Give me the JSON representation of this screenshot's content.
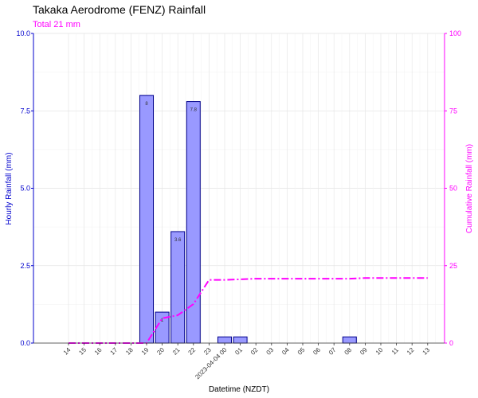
{
  "chart_data": {
    "type": "bar",
    "title": "Takaka Aerodrome (FENZ) Rainfall",
    "subtitle": "Total 21 mm",
    "xlabel": "Datetime (NZDT)",
    "ylabel": "Hourly Rainfall (mm)",
    "y2label": "Cumulative Rainfall (mm)",
    "ylim": [
      0,
      10
    ],
    "y2lim": [
      0,
      100
    ],
    "yticks": [
      "0.0",
      "2.5",
      "5.0",
      "7.5",
      "10.0"
    ],
    "y2ticks": [
      "0",
      "25",
      "50",
      "75",
      "100"
    ],
    "categories": [
      "14",
      "15",
      "16",
      "17",
      "18",
      "19",
      "20",
      "21",
      "22",
      "23",
      "2023-04-04 00",
      "01",
      "02",
      "03",
      "04",
      "05",
      "06",
      "07",
      "08",
      "09",
      "10",
      "11",
      "12",
      "13"
    ],
    "series": [
      {
        "type": "bar",
        "values": [
          0,
          0,
          0,
          0,
          0,
          8.0,
          1.0,
          3.6,
          7.8,
          0,
          0.2,
          0.2,
          0,
          0,
          0,
          0,
          0,
          0,
          0.2,
          0,
          0,
          0,
          0,
          0
        ],
        "labels": [
          "",
          "",
          "",
          "",
          "",
          "8",
          "1",
          "3.6",
          "7.8",
          "",
          "",
          "",
          "",
          "",
          "",
          "",
          "",
          "",
          "",
          "",
          "",
          "",
          "",
          ""
        ]
      },
      {
        "type": "line",
        "axis": "secondary",
        "values": [
          0,
          0,
          0,
          0,
          0,
          0,
          8.0,
          9.0,
          12.6,
          20.4,
          20.4,
          20.6,
          20.8,
          20.8,
          20.8,
          20.8,
          20.8,
          20.8,
          20.8,
          21.0,
          21.0,
          21.0,
          21.0,
          21.0
        ]
      }
    ],
    "grid": true,
    "colors": {
      "bar_fill": "#9999ff",
      "bar_stroke": "#00008b",
      "line": "#ff00ff",
      "left_axis": "#0000cd",
      "right_axis": "#ff00ff"
    }
  }
}
